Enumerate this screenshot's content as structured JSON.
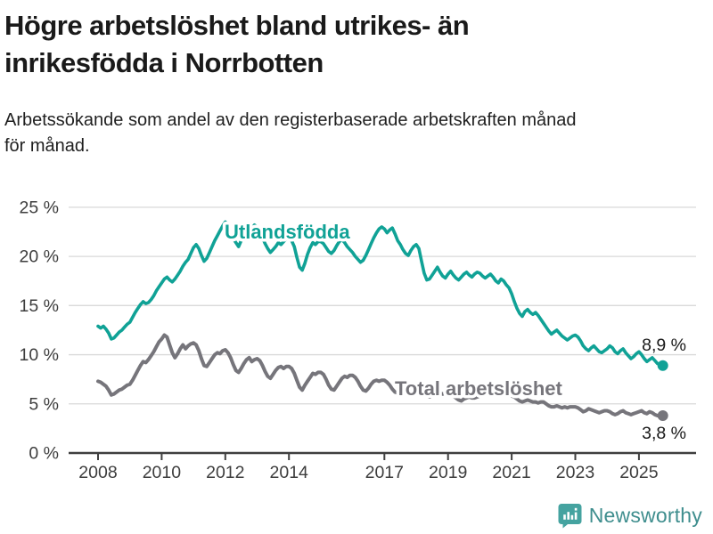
{
  "header": {
    "title_lines": [
      "Högre arbetslöshet bland utrikes- än",
      "inrikesfödda i Norrbotten"
    ],
    "subtitle_lines": [
      "Arbetssökande som andel av den registerbaserade arbetskraften månad",
      "för månad."
    ]
  },
  "chart_data": {
    "type": "line",
    "x_start_year": 2008,
    "x_step_months": 1,
    "x_end": "2025-10",
    "ylim": [
      0,
      25
    ],
    "yticks": [
      0,
      5,
      10,
      15,
      20,
      25
    ],
    "ytick_suffix": " %",
    "xticks": [
      2008,
      2010,
      2012,
      2014,
      2017,
      2019,
      2021,
      2023,
      2025
    ],
    "grid": true,
    "grid_color": "#d9d9d9",
    "axis_color": "#3f3f3f",
    "series": [
      {
        "name": "Utlandsfödda",
        "color": "#10a296",
        "end_label": "8,9 %",
        "end_value": 8.9,
        "values": [
          12.9,
          12.7,
          12.9,
          12.6,
          12.2,
          11.6,
          11.7,
          12.0,
          12.3,
          12.5,
          12.8,
          13.1,
          13.3,
          13.8,
          14.3,
          14.7,
          15.1,
          15.4,
          15.2,
          15.3,
          15.6,
          16.0,
          16.5,
          16.9,
          17.3,
          17.7,
          17.9,
          17.6,
          17.4,
          17.7,
          18.1,
          18.5,
          19.0,
          19.4,
          19.7,
          20.3,
          20.9,
          21.2,
          20.8,
          20.1,
          19.5,
          19.8,
          20.4,
          21.0,
          21.6,
          22.1,
          22.6,
          23.1,
          23.5,
          23.1,
          22.4,
          21.8,
          21.4,
          21.0,
          21.6,
          22.1,
          22.8,
          22.4,
          22.9,
          23.2,
          23.0,
          22.6,
          21.9,
          21.3,
          20.8,
          20.4,
          20.7,
          21.0,
          21.4,
          21.2,
          21.5,
          21.8,
          22.0,
          21.6,
          21.0,
          19.9,
          18.9,
          18.6,
          19.3,
          20.2,
          20.9,
          21.4,
          21.2,
          21.5,
          21.5,
          21.3,
          20.9,
          20.5,
          20.3,
          20.6,
          21.1,
          21.5,
          21.7,
          21.4,
          21.0,
          20.7,
          20.4,
          20.0,
          19.7,
          19.4,
          19.6,
          20.1,
          20.7,
          21.3,
          21.9,
          22.4,
          22.8,
          23.0,
          22.8,
          22.4,
          22.7,
          22.9,
          22.3,
          21.6,
          21.2,
          20.7,
          20.3,
          20.1,
          20.6,
          21.0,
          21.2,
          20.8,
          19.5,
          18.3,
          17.6,
          17.7,
          18.1,
          18.5,
          18.9,
          18.4,
          18.0,
          17.8,
          18.2,
          18.5,
          18.1,
          17.8,
          17.6,
          17.9,
          18.2,
          18.4,
          18.1,
          17.9,
          18.2,
          18.4,
          18.3,
          18.0,
          17.8,
          18.0,
          18.2,
          17.9,
          17.5,
          17.3,
          17.7,
          17.5,
          17.1,
          16.8,
          16.2,
          15.4,
          14.7,
          14.2,
          13.9,
          14.4,
          14.6,
          14.3,
          14.1,
          14.3,
          14.0,
          13.6,
          13.2,
          12.8,
          12.4,
          12.1,
          12.3,
          12.5,
          12.2,
          11.9,
          11.7,
          11.5,
          11.7,
          11.9,
          12.0,
          11.8,
          11.4,
          10.9,
          10.6,
          10.4,
          10.7,
          10.9,
          10.6,
          10.3,
          10.2,
          10.4,
          10.6,
          10.9,
          10.7,
          10.3,
          10.1,
          10.4,
          10.6,
          10.2,
          9.9,
          9.6,
          9.8,
          10.1,
          10.3,
          10.0,
          9.6,
          9.3,
          9.5,
          9.7,
          9.4,
          9.1,
          9.0,
          8.9
        ]
      },
      {
        "name": "Total arbetslöshet",
        "color": "#76757b",
        "end_label": "3,8 %",
        "end_value": 3.8,
        "values": [
          7.3,
          7.2,
          7.0,
          6.8,
          6.4,
          5.9,
          6.0,
          6.2,
          6.4,
          6.5,
          6.7,
          6.9,
          7.0,
          7.4,
          7.9,
          8.4,
          8.9,
          9.3,
          9.2,
          9.5,
          9.9,
          10.3,
          10.8,
          11.3,
          11.6,
          12.0,
          11.8,
          11.0,
          10.2,
          9.7,
          10.1,
          10.6,
          11.0,
          10.6,
          10.9,
          11.1,
          11.2,
          11.0,
          10.4,
          9.6,
          8.9,
          8.8,
          9.2,
          9.6,
          10.0,
          10.2,
          10.1,
          10.4,
          10.5,
          10.2,
          9.7,
          9.0,
          8.4,
          8.2,
          8.6,
          9.1,
          9.5,
          9.7,
          9.3,
          9.5,
          9.6,
          9.4,
          8.9,
          8.3,
          7.8,
          7.6,
          8.0,
          8.4,
          8.7,
          8.8,
          8.6,
          8.8,
          8.8,
          8.6,
          8.1,
          7.4,
          6.7,
          6.4,
          6.9,
          7.3,
          7.7,
          8.1,
          8.0,
          8.2,
          8.2,
          8.0,
          7.5,
          6.9,
          6.5,
          6.4,
          6.8,
          7.2,
          7.6,
          7.8,
          7.7,
          7.9,
          7.9,
          7.7,
          7.3,
          6.8,
          6.4,
          6.3,
          6.6,
          7.0,
          7.3,
          7.4,
          7.3,
          7.4,
          7.4,
          7.2,
          6.9,
          6.5,
          6.2,
          6.1,
          6.4,
          6.6,
          6.8,
          6.8,
          6.7,
          6.8,
          6.8,
          6.6,
          6.3,
          6.0,
          5.8,
          5.7,
          5.9,
          6.1,
          6.2,
          6.1,
          6.0,
          6.1,
          6.1,
          6.0,
          5.8,
          5.6,
          5.4,
          5.3,
          5.5,
          5.6,
          5.7,
          5.6,
          5.6,
          5.7,
          5.8,
          5.9,
          6.2,
          6.5,
          6.6,
          6.5,
          6.4,
          6.3,
          6.2,
          6.1,
          6.0,
          5.9,
          5.8,
          5.7,
          5.5,
          5.3,
          5.2,
          5.3,
          5.4,
          5.3,
          5.2,
          5.2,
          5.1,
          5.2,
          5.2,
          5.0,
          4.8,
          4.7,
          4.7,
          4.8,
          4.7,
          4.6,
          4.7,
          4.6,
          4.7,
          4.7,
          4.7,
          4.6,
          4.4,
          4.2,
          4.3,
          4.5,
          4.4,
          4.3,
          4.2,
          4.1,
          4.2,
          4.3,
          4.3,
          4.2,
          4.0,
          3.9,
          4.0,
          4.2,
          4.3,
          4.1,
          4.0,
          3.9,
          4.0,
          4.1,
          4.2,
          4.3,
          4.1,
          4.0,
          4.2,
          4.1,
          3.9,
          3.8,
          3.8,
          3.8
        ]
      }
    ]
  },
  "footer": {
    "brand": "Newsworthy",
    "logo_icon": "bar-chart-speech-bubble-icon",
    "brand_color": "#3f8e8e",
    "icon_color": "#45a3a0"
  }
}
